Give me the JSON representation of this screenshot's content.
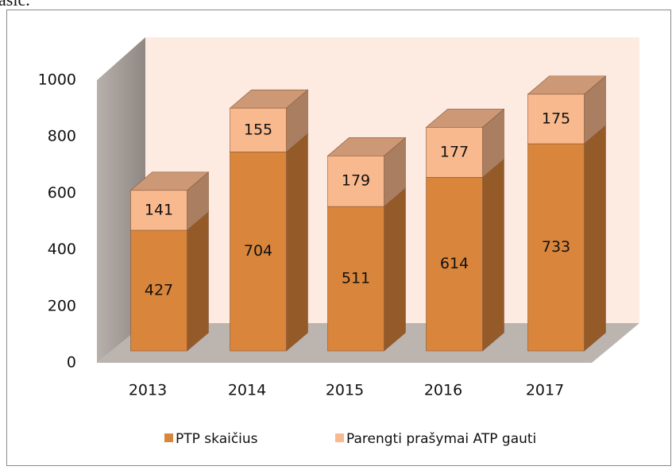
{
  "text": "asic.",
  "chart_data": {
    "type": "bar",
    "stacked": true,
    "categories": [
      "2013",
      "2014",
      "2015",
      "2016",
      "2017"
    ],
    "series": [
      {
        "name": "PTP skaičius",
        "color": "#d9853b",
        "values": [
          427,
          704,
          511,
          614,
          733
        ]
      },
      {
        "name": "Parengti prašymai ATP gauti",
        "color": "#f9b98f",
        "values": [
          141,
          155,
          179,
          177,
          175
        ]
      }
    ],
    "ylim": [
      0,
      1000
    ],
    "yticks": [
      0,
      200,
      400,
      600,
      800,
      1000
    ],
    "legend": "bottom"
  }
}
